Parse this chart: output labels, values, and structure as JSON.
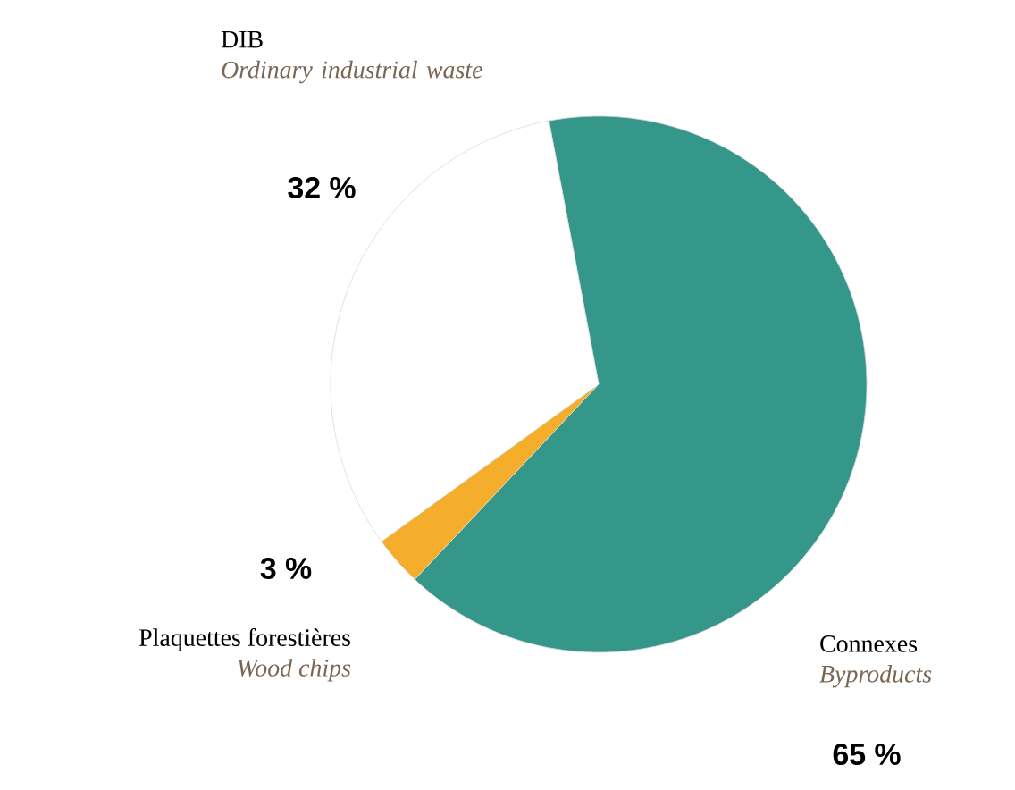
{
  "chart_data": {
    "type": "pie",
    "categories": [
      "Connexes",
      "Plaquettes forestières",
      "DIB"
    ],
    "values": [
      65,
      3,
      32
    ],
    "colors": [
      "#35968a",
      "#f5ae2b",
      "#ffffff"
    ],
    "value_labels": [
      "65 %",
      "3 %",
      "32 %"
    ],
    "annotations": [
      "Byproducts",
      "Wood chips",
      "Ordinary industrial waste"
    ]
  }
}
